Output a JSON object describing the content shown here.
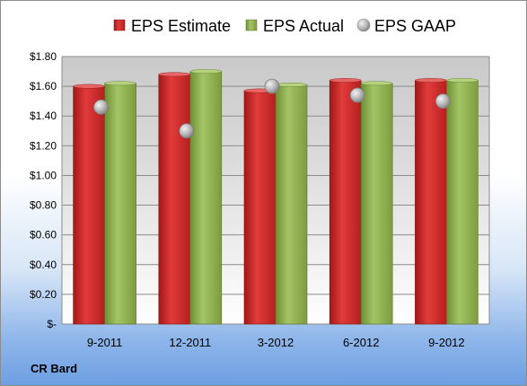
{
  "company": "CR Bard",
  "chart_data": {
    "type": "bar",
    "title": "",
    "xlabel": "",
    "ylabel": "",
    "categories": [
      "9-2011",
      "12-2011",
      "3-2012",
      "6-2012",
      "9-2012"
    ],
    "series": [
      {
        "name": "EPS Estimate",
        "kind": "bar",
        "values": [
          1.6,
          1.68,
          1.57,
          1.64,
          1.64
        ],
        "color": "#d42a2a"
      },
      {
        "name": "EPS Actual",
        "kind": "bar",
        "values": [
          1.62,
          1.7,
          1.61,
          1.62,
          1.64
        ],
        "color": "#8fb14e"
      },
      {
        "name": "EPS GAAP",
        "kind": "scatter",
        "values": [
          1.46,
          1.3,
          1.6,
          1.54,
          1.5
        ],
        "color": "#b4b4b4"
      }
    ],
    "ylim": [
      0,
      1.8
    ],
    "yticks": [
      {
        "value": 0,
        "label": "$-"
      },
      {
        "value": 0.2,
        "label": "$0.20"
      },
      {
        "value": 0.4,
        "label": "$0.40"
      },
      {
        "value": 0.6,
        "label": "$0.60"
      },
      {
        "value": 0.8,
        "label": "$0.80"
      },
      {
        "value": 1.0,
        "label": "$1.00"
      },
      {
        "value": 1.2,
        "label": "$1.20"
      },
      {
        "value": 1.4,
        "label": "$1.40"
      },
      {
        "value": 1.6,
        "label": "$1.60"
      },
      {
        "value": 1.8,
        "label": "$1.80"
      }
    ],
    "grid": true,
    "legend_position": "top"
  }
}
